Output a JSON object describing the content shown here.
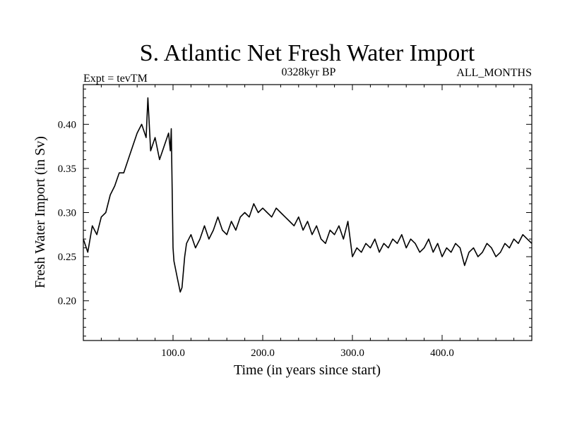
{
  "chart_data": {
    "type": "line",
    "title": "S. Atlantic Net Fresh Water Import",
    "subtitle_left": "Expt = tevTM",
    "subtitle_center": "0328kyr BP",
    "subtitle_right": "ALL_MONTHS",
    "xlabel": "Time (in years since start)",
    "ylabel": "Fresh Water Import (in Sv)",
    "xlim": [
      0,
      500
    ],
    "ylim": [
      0.155,
      0.445
    ],
    "x_ticks": [
      100,
      200,
      300,
      400
    ],
    "x_tick_labels": [
      "100.0",
      "200.0",
      "300.0",
      "400.0"
    ],
    "y_ticks": [
      0.2,
      0.25,
      0.3,
      0.35,
      0.4
    ],
    "y_tick_labels": [
      "0.20",
      "0.25",
      "0.30",
      "0.35",
      "0.40"
    ],
    "grid": false,
    "legend": "none",
    "line_color": "#000000",
    "series": [
      {
        "x": [
          0,
          5,
          10,
          15,
          20,
          25,
          30,
          35,
          40,
          45,
          50,
          55,
          60,
          65,
          70,
          72,
          75,
          80,
          85,
          90,
          95,
          97,
          98,
          100,
          101,
          103,
          105,
          108,
          110,
          113,
          115,
          120,
          125,
          130,
          135,
          140,
          145,
          150,
          155,
          160,
          165,
          170,
          175,
          180,
          185,
          190,
          195,
          200,
          205,
          210,
          215,
          220,
          225,
          230,
          235,
          240,
          245,
          250,
          255,
          260,
          265,
          270,
          275,
          280,
          285,
          290,
          295,
          300,
          305,
          310,
          315,
          320,
          325,
          330,
          335,
          340,
          345,
          350,
          355,
          360,
          365,
          370,
          375,
          380,
          385,
          390,
          395,
          400,
          405,
          410,
          415,
          420,
          425,
          430,
          435,
          440,
          445,
          450,
          455,
          460,
          465,
          470,
          475,
          480,
          485,
          490,
          495,
          500
        ],
        "values": [
          0.27,
          0.255,
          0.285,
          0.275,
          0.295,
          0.3,
          0.32,
          0.33,
          0.345,
          0.345,
          0.36,
          0.375,
          0.39,
          0.4,
          0.385,
          0.43,
          0.37,
          0.385,
          0.36,
          0.375,
          0.39,
          0.37,
          0.395,
          0.26,
          0.245,
          0.235,
          0.225,
          0.21,
          0.215,
          0.25,
          0.265,
          0.275,
          0.26,
          0.27,
          0.285,
          0.27,
          0.28,
          0.295,
          0.28,
          0.275,
          0.29,
          0.28,
          0.295,
          0.3,
          0.295,
          0.31,
          0.3,
          0.305,
          0.3,
          0.295,
          0.305,
          0.3,
          0.295,
          0.29,
          0.285,
          0.295,
          0.28,
          0.29,
          0.275,
          0.285,
          0.27,
          0.265,
          0.28,
          0.275,
          0.285,
          0.27,
          0.29,
          0.25,
          0.26,
          0.255,
          0.265,
          0.26,
          0.27,
          0.255,
          0.265,
          0.26,
          0.27,
          0.265,
          0.275,
          0.26,
          0.27,
          0.265,
          0.255,
          0.26,
          0.27,
          0.255,
          0.265,
          0.25,
          0.26,
          0.255,
          0.265,
          0.26,
          0.24,
          0.255,
          0.26,
          0.25,
          0.255,
          0.265,
          0.26,
          0.25,
          0.255,
          0.265,
          0.26,
          0.27,
          0.265,
          0.275,
          0.27,
          0.265
        ]
      }
    ]
  }
}
